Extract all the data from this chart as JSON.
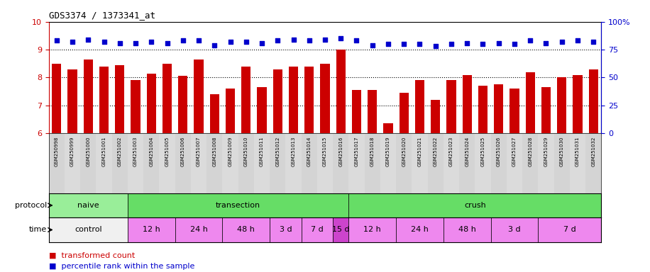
{
  "title": "GDS3374 / 1373341_at",
  "samples": [
    "GSM250998",
    "GSM250999",
    "GSM251000",
    "GSM251001",
    "GSM251002",
    "GSM251003",
    "GSM251004",
    "GSM251005",
    "GSM251006",
    "GSM251007",
    "GSM251008",
    "GSM251009",
    "GSM251010",
    "GSM251011",
    "GSM251012",
    "GSM251013",
    "GSM251014",
    "GSM251015",
    "GSM251016",
    "GSM251017",
    "GSM251018",
    "GSM251019",
    "GSM251020",
    "GSM251021",
    "GSM251022",
    "GSM251023",
    "GSM251024",
    "GSM251025",
    "GSM251026",
    "GSM251027",
    "GSM251028",
    "GSM251029",
    "GSM251030",
    "GSM251031",
    "GSM251032"
  ],
  "bar_values": [
    8.5,
    8.3,
    8.65,
    8.4,
    8.45,
    7.9,
    8.15,
    8.5,
    8.05,
    8.65,
    7.4,
    7.6,
    8.4,
    7.65,
    8.3,
    8.4,
    8.4,
    8.5,
    9.0,
    7.55,
    7.55,
    6.35,
    7.45,
    7.9,
    7.2,
    7.9,
    8.1,
    7.7,
    7.75,
    7.6,
    8.2,
    7.65,
    8.0,
    8.1,
    8.3
  ],
  "scatter_values": [
    83,
    82,
    84,
    82,
    81,
    81,
    82,
    81,
    83,
    83,
    79,
    82,
    82,
    81,
    83,
    84,
    83,
    84,
    85,
    83,
    79,
    80,
    80,
    80,
    78,
    80,
    81,
    80,
    81,
    80,
    83,
    81,
    82,
    83,
    82
  ],
  "ylim_left": [
    6,
    10
  ],
  "ylim_right": [
    0,
    100
  ],
  "yticks_left": [
    6,
    7,
    8,
    9,
    10
  ],
  "yticks_right": [
    0,
    25,
    50,
    75,
    100
  ],
  "bar_color": "#cc0000",
  "scatter_color": "#0000cc",
  "proto_groups": [
    {
      "label": "naive",
      "start": 0,
      "end": 4,
      "color": "#99ee99"
    },
    {
      "label": "transection",
      "start": 5,
      "end": 18,
      "color": "#66dd66"
    },
    {
      "label": "crush",
      "start": 19,
      "end": 34,
      "color": "#66dd66"
    }
  ],
  "time_groups": [
    {
      "label": "control",
      "start": 0,
      "end": 4,
      "color": "#f0f0f0"
    },
    {
      "label": "12 h",
      "start": 5,
      "end": 7,
      "color": "#ee88ee"
    },
    {
      "label": "24 h",
      "start": 8,
      "end": 10,
      "color": "#ee88ee"
    },
    {
      "label": "48 h",
      "start": 11,
      "end": 13,
      "color": "#ee88ee"
    },
    {
      "label": "3 d",
      "start": 14,
      "end": 15,
      "color": "#ee88ee"
    },
    {
      "label": "7 d",
      "start": 16,
      "end": 17,
      "color": "#ee88ee"
    },
    {
      "label": "15 d",
      "start": 18,
      "end": 18,
      "color": "#cc44cc"
    },
    {
      "label": "12 h",
      "start": 19,
      "end": 21,
      "color": "#ee88ee"
    },
    {
      "label": "24 h",
      "start": 22,
      "end": 24,
      "color": "#ee88ee"
    },
    {
      "label": "48 h",
      "start": 25,
      "end": 27,
      "color": "#ee88ee"
    },
    {
      "label": "3 d",
      "start": 28,
      "end": 30,
      "color": "#ee88ee"
    },
    {
      "label": "7 d",
      "start": 31,
      "end": 34,
      "color": "#ee88ee"
    }
  ],
  "legend_items": [
    {
      "label": "transformed count",
      "color": "#cc0000"
    },
    {
      "label": "percentile rank within the sample",
      "color": "#0000cc"
    }
  ],
  "dotted_yticks": [
    7,
    8,
    9
  ],
  "main_bg": "#ffffff",
  "label_bg": "#d8d8d8"
}
